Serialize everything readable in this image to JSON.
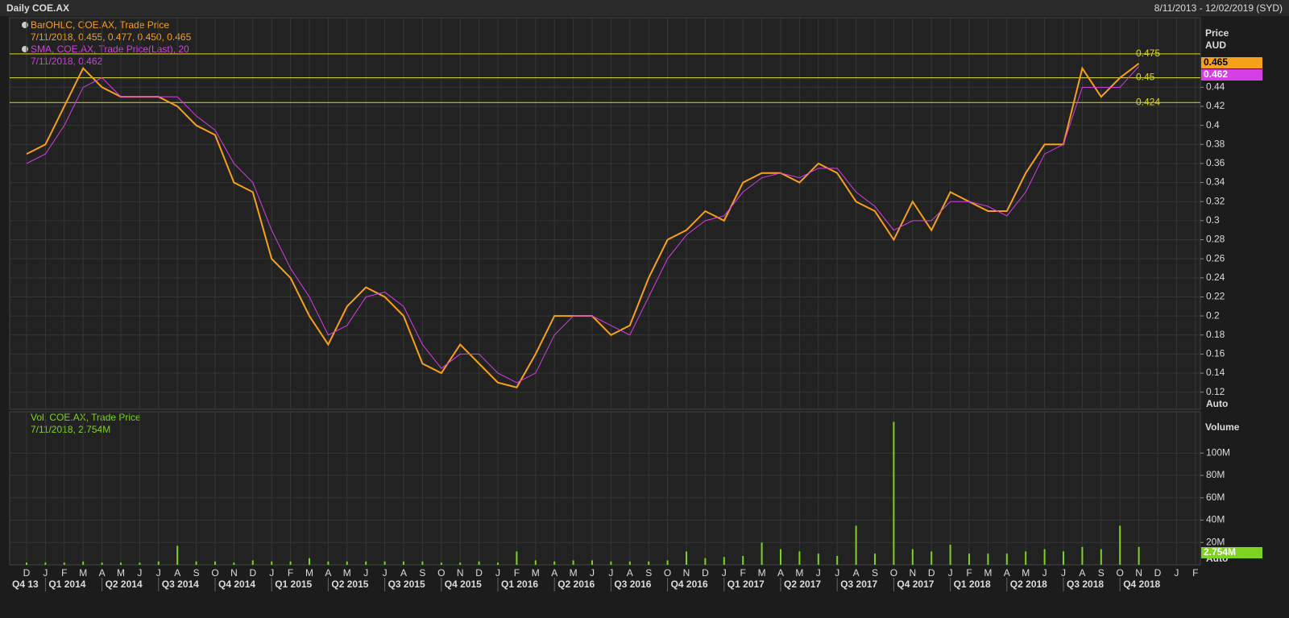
{
  "header": {
    "title": "Daily COE.AX",
    "range": "8/11/2013 - 12/02/2019 (SYD)"
  },
  "chart_data": [
    {
      "type": "line",
      "ylabel": "Price",
      "unit": "AUD",
      "scale_mode": "Auto",
      "categories": [
        "D",
        "J",
        "F",
        "M",
        "A",
        "M",
        "J",
        "J",
        "A",
        "S",
        "O",
        "N",
        "D",
        "J",
        "F",
        "M",
        "A",
        "M",
        "J",
        "J",
        "A",
        "S",
        "O",
        "N",
        "D",
        "J",
        "F",
        "M",
        "A",
        "M",
        "J",
        "J",
        "A",
        "S",
        "O",
        "N",
        "D",
        "J",
        "F",
        "M",
        "A",
        "M",
        "J",
        "J",
        "A",
        "S",
        "O",
        "N",
        "D",
        "J",
        "F",
        "M",
        "A",
        "M",
        "J",
        "J",
        "A",
        "S",
        "O",
        "N",
        "D",
        "J",
        "F"
      ],
      "quarters": [
        "Q4 13",
        "Q1 2014",
        "Q2 2014",
        "Q3 2014",
        "Q4 2014",
        "Q1 2015",
        "Q2 2015",
        "Q3 2015",
        "Q4 2015",
        "Q1 2016",
        "Q2 2016",
        "Q3 2016",
        "Q4 2016",
        "Q1 2017",
        "Q2 2017",
        "Q3 2017",
        "Q4 2017",
        "Q1 2018",
        "Q2 2018",
        "Q3 2018",
        "Q4 2018"
      ],
      "series": [
        {
          "name": "BarOHLC, COE.AX, Trade Price",
          "legend_detail": "7/11/2018, 0.455, 0.477, 0.450, 0.465",
          "color": "#f7a11a",
          "values": [
            0.37,
            0.38,
            0.42,
            0.46,
            0.44,
            0.43,
            0.43,
            0.43,
            0.42,
            0.4,
            0.39,
            0.34,
            0.33,
            0.26,
            0.24,
            0.2,
            0.17,
            0.21,
            0.23,
            0.22,
            0.2,
            0.15,
            0.14,
            0.17,
            0.15,
            0.13,
            0.125,
            0.16,
            0.2,
            0.2,
            0.2,
            0.18,
            0.19,
            0.24,
            0.28,
            0.29,
            0.31,
            0.3,
            0.34,
            0.35,
            0.35,
            0.34,
            0.36,
            0.35,
            0.32,
            0.31,
            0.28,
            0.32,
            0.29,
            0.33,
            0.32,
            0.31,
            0.31,
            0.35,
            0.38,
            0.38,
            0.46,
            0.43,
            0.45,
            0.465,
            null,
            null,
            null
          ]
        },
        {
          "name": "SMA, COE.AX, Trade Price(Last),  20",
          "legend_detail": "7/11/2018, 0.462",
          "color": "#d63ee6",
          "values": [
            0.36,
            0.37,
            0.4,
            0.44,
            0.45,
            0.43,
            0.43,
            0.43,
            0.43,
            0.41,
            0.395,
            0.36,
            0.34,
            0.29,
            0.25,
            0.22,
            0.18,
            0.19,
            0.22,
            0.225,
            0.21,
            0.17,
            0.145,
            0.16,
            0.16,
            0.14,
            0.13,
            0.14,
            0.18,
            0.2,
            0.2,
            0.19,
            0.18,
            0.22,
            0.26,
            0.285,
            0.3,
            0.305,
            0.33,
            0.345,
            0.35,
            0.345,
            0.355,
            0.355,
            0.33,
            0.315,
            0.29,
            0.3,
            0.3,
            0.32,
            0.32,
            0.315,
            0.305,
            0.33,
            0.37,
            0.38,
            0.44,
            0.44,
            0.44,
            0.462,
            null,
            null,
            null
          ]
        }
      ],
      "hlines": [
        0.475,
        0.45,
        0.424
      ],
      "hline_color": "#d8d820",
      "ylim": [
        0.102,
        0.513
      ],
      "yticks": [
        0.12,
        0.14,
        0.16,
        0.18,
        0.2,
        0.22,
        0.24,
        0.26,
        0.28,
        0.3,
        0.32,
        0.34,
        0.36,
        0.38,
        0.4,
        0.42,
        0.44
      ],
      "grid": true
    },
    {
      "type": "bar",
      "ylabel": "Volume",
      "scale_mode": "Auto",
      "series": [
        {
          "name": "Vol, COE.AX, Trade Price",
          "legend_detail": "7/11/2018, 2.754M",
          "color": "#7ed321",
          "values": [
            2000000,
            2000000,
            2000000,
            3000000,
            2000000,
            2000000,
            2000000,
            3000000,
            17000000,
            3000000,
            3000000,
            2000000,
            4000000,
            3000000,
            3000000,
            6000000,
            3000000,
            3000000,
            3000000,
            3000000,
            3000000,
            3000000,
            2000000,
            2000000,
            3000000,
            2000000,
            12000000,
            4000000,
            3000000,
            4000000,
            4000000,
            3000000,
            3000000,
            3000000,
            4000000,
            12000000,
            6000000,
            7000000,
            8000000,
            20000000,
            14000000,
            12000000,
            10000000,
            8000000,
            35000000,
            10000000,
            128000000,
            14000000,
            12000000,
            18000000,
            10000000,
            10000000,
            10000000,
            12000000,
            14000000,
            12000000,
            16000000,
            14000000,
            35000000,
            16000000,
            null,
            null,
            null
          ]
        }
      ],
      "last_value": {
        "value": 2754000,
        "label": "2.754M"
      },
      "ylim": [
        0,
        137000000
      ],
      "yticks": [
        {
          "value": 20000000,
          "label": "20M"
        },
        {
          "value": 40000000,
          "label": "40M"
        },
        {
          "value": 60000000,
          "label": "60M"
        },
        {
          "value": 80000000,
          "label": "80M"
        },
        {
          "value": 100000000,
          "label": "100M"
        }
      ],
      "grid": true
    }
  ]
}
